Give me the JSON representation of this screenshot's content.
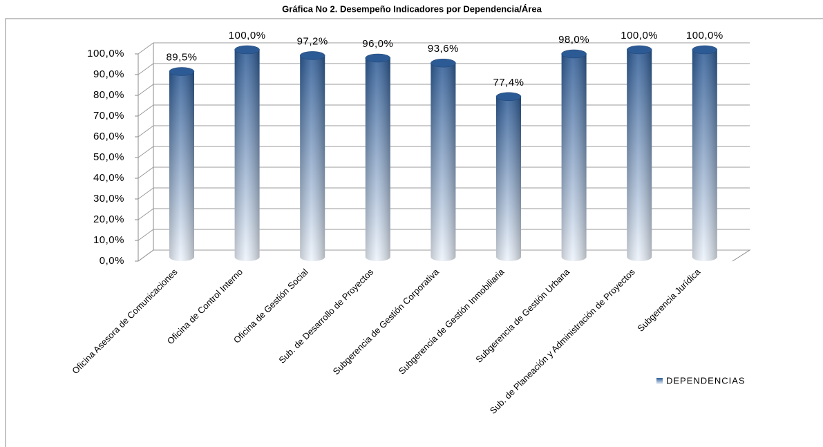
{
  "chart_data": {
    "type": "bar",
    "title": "Gráfica No 2. Desempeño  Indicadores por Dependencia/Área",
    "categories": [
      "Oficina Asesora de Comunicaciones",
      "Oficina de Control Interno",
      "Oficina de Gestión Social",
      "Sub. de Desarrollo de Proyectos",
      "Subgerencia de Gestión Corporativa",
      "Subgerencia de Gestión Inmobiliaria",
      "Subgerencia de Gestión Urbana",
      "Sub. de Planeación y Administración de Proyectos",
      "Subgerencia Jurídica"
    ],
    "series": [
      {
        "name": "DEPENDENCIAS",
        "color": "#2c5a95",
        "values": [
          89.5,
          100,
          97.2,
          96,
          93.6,
          77.4,
          98,
          100,
          100
        ],
        "value_labels": [
          "89,5%",
          "100,0%",
          "97,2%",
          "96,0%",
          "93,6%",
          "77,4%",
          "98,0%",
          "100,0%",
          "100,0%"
        ]
      }
    ],
    "ylim": [
      0,
      100
    ],
    "yticks": [
      {
        "value": 0,
        "label": "0,0%"
      },
      {
        "value": 10,
        "label": "10,0%"
      },
      {
        "value": 20,
        "label": "20,0%"
      },
      {
        "value": 30,
        "label": "30,0%"
      },
      {
        "value": 40,
        "label": "40,0%"
      },
      {
        "value": 50,
        "label": "50,0%"
      },
      {
        "value": 60,
        "label": "60,0%"
      },
      {
        "value": 70,
        "label": "70,0%"
      },
      {
        "value": 80,
        "label": "80,0%"
      },
      {
        "value": 90,
        "label": "90,0%"
      },
      {
        "value": 100,
        "label": "100,0%"
      }
    ],
    "grid": true
  }
}
